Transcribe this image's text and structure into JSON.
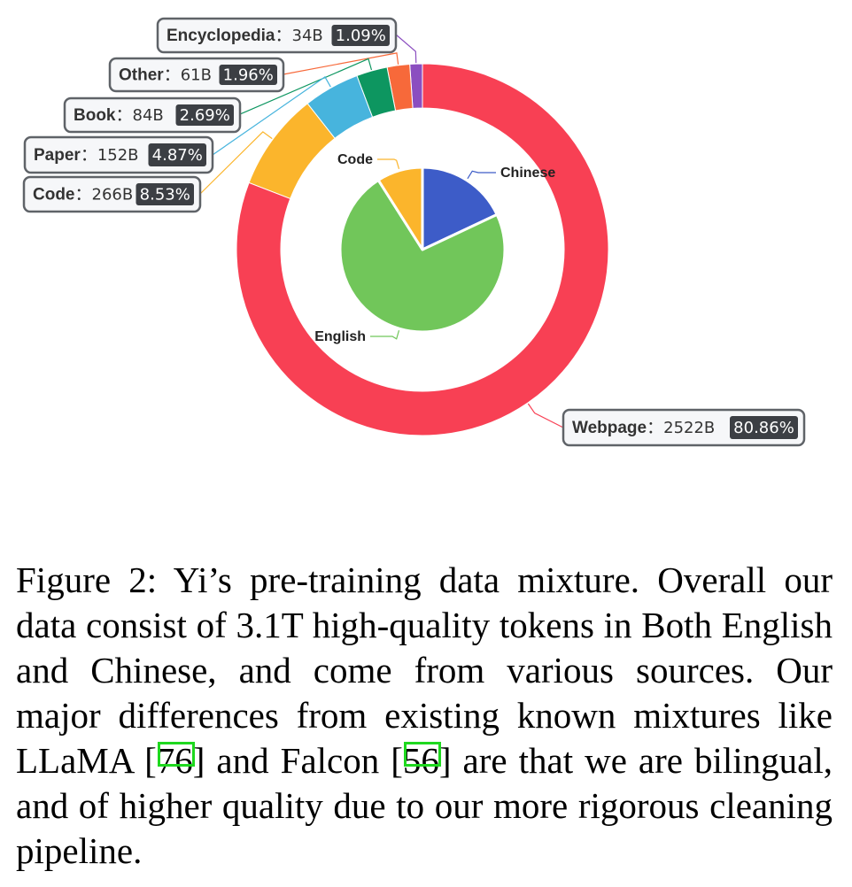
{
  "chart_data": {
    "type": "pie",
    "variant": "nested-donut",
    "outer_ring": {
      "slices": [
        {
          "name": "Encyclopedia",
          "value": "34B",
          "tokens_b": 34,
          "percent": 1.09,
          "percent_label": "1.09%",
          "color": "#8b4ec0"
        },
        {
          "name": "Other",
          "value": "61B",
          "tokens_b": 61,
          "percent": 1.96,
          "percent_label": "1.96%",
          "color": "#f7693a"
        },
        {
          "name": "Book",
          "value": "84B",
          "tokens_b": 84,
          "percent": 2.69,
          "percent_label": "2.69%",
          "color": "#0d9660"
        },
        {
          "name": "Paper",
          "value": "152B",
          "tokens_b": 152,
          "percent": 4.87,
          "percent_label": "4.87%",
          "color": "#47b4dd"
        },
        {
          "name": "Code",
          "value": "266B",
          "tokens_b": 266,
          "percent": 8.53,
          "percent_label": "8.53%",
          "color": "#fbb52c"
        },
        {
          "name": "Webpage",
          "value": "2522B",
          "tokens_b": 2522,
          "percent": 80.86,
          "percent_label": "80.86%",
          "color": "#f84054"
        }
      ]
    },
    "inner_pie": {
      "slices": [
        {
          "name": "Chinese",
          "percent": 18,
          "color": "#3d5cc8"
        },
        {
          "name": "English",
          "percent": 73,
          "color": "#71c65a"
        },
        {
          "name": "Code",
          "percent": 9,
          "color": "#fbb52c"
        }
      ]
    },
    "separator": "："
  },
  "caption": {
    "text": "Figure 2:  Yi’s pre-training data mixture.  Overall our data consist of 3.1T high-quality tokens in Both English and Chinese, and come from various sources. Our major differences from existing known mixtures like LLaMA [",
    "cite1": "76",
    "mid": "] and Falcon [",
    "cite2": "56",
    "end": "] are that we are bilingual, and of higher quality due to our more rigorous cleaning pipeline."
  }
}
